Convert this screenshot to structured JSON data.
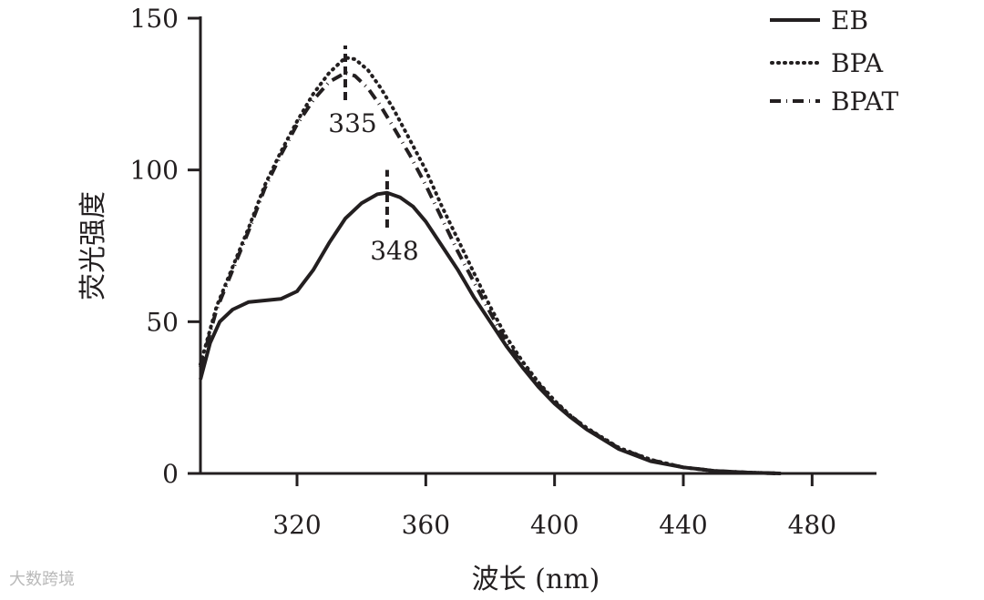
{
  "watermark": "大数跨境",
  "chart_data": {
    "type": "line",
    "xlabel": "波长 (nm)",
    "ylabel": "荧光强度",
    "xlim": [
      290,
      500
    ],
    "ylim": [
      0,
      150
    ],
    "xticks": [
      320,
      360,
      400,
      440,
      480
    ],
    "yticks": [
      0,
      50,
      100,
      150
    ],
    "legend_position": "top-right",
    "series": [
      {
        "name": "EB",
        "style": "solid",
        "x": [
          290,
          293,
          296,
          300,
          305,
          310,
          315,
          320,
          325,
          330,
          335,
          340,
          345,
          348,
          352,
          356,
          360,
          365,
          370,
          375,
          380,
          385,
          390,
          395,
          400,
          405,
          410,
          420,
          430,
          440,
          450,
          460,
          470
        ],
        "y": [
          31,
          43,
          50,
          54,
          56.5,
          57,
          57.5,
          60,
          67,
          76,
          84,
          89,
          92,
          92.5,
          91,
          88,
          83,
          75,
          67,
          58,
          50,
          42,
          35,
          28.5,
          23,
          18.5,
          14.5,
          8,
          4,
          2,
          0.8,
          0.3,
          0
        ]
      },
      {
        "name": "BPA",
        "style": "dotted",
        "x": [
          290,
          295,
          300,
          305,
          310,
          315,
          320,
          325,
          330,
          335,
          338,
          342,
          346,
          350,
          355,
          360,
          365,
          370,
          375,
          380,
          385,
          390,
          395,
          400,
          405,
          410,
          420,
          430,
          440,
          450,
          460,
          470
        ],
        "y": [
          36,
          55,
          68,
          81,
          95,
          106,
          116,
          125,
          132,
          137,
          136.5,
          133,
          127,
          120,
          110,
          100,
          88,
          77,
          66,
          55,
          45,
          37,
          30,
          24,
          19,
          15,
          8.5,
          4.5,
          2,
          0.8,
          0.3,
          0
        ]
      },
      {
        "name": "BPAT",
        "style": "dashdot",
        "x": [
          290,
          295,
          300,
          305,
          310,
          315,
          320,
          325,
          330,
          335,
          338,
          342,
          346,
          350,
          355,
          360,
          365,
          370,
          375,
          380,
          385,
          390,
          395,
          400,
          405,
          410,
          420,
          430,
          440,
          450,
          460,
          470
        ],
        "y": [
          35,
          54,
          67,
          80,
          94,
          105,
          115,
          123,
          129,
          132,
          131,
          127,
          121,
          114,
          105,
          95,
          84,
          73,
          63,
          53,
          43.5,
          36,
          29.5,
          23.5,
          19,
          14.8,
          8.3,
          4.4,
          2,
          0.8,
          0.3,
          0
        ]
      }
    ],
    "annotations": [
      {
        "text": "335",
        "x": 335,
        "tick_y": [
          123,
          141
        ]
      },
      {
        "text": "348",
        "x": 348,
        "tick_y": [
          81,
          100
        ]
      }
    ]
  }
}
